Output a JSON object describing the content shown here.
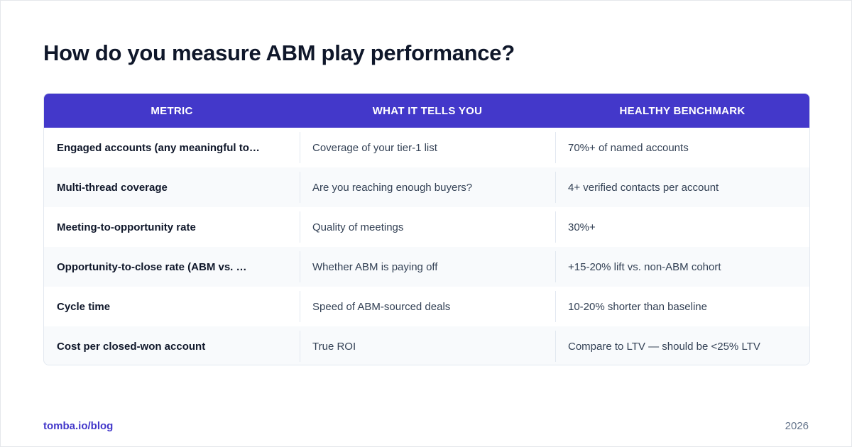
{
  "title": "How do you measure ABM play performance?",
  "table": {
    "headers": [
      "METRIC",
      "WHAT IT TELLS YOU",
      "HEALTHY BENCHMARK"
    ],
    "rows": [
      [
        "Engaged accounts (any meaningful to…",
        "Coverage of your tier-1 list",
        "70%+ of named accounts"
      ],
      [
        "Multi-thread coverage",
        "Are you reaching enough buyers?",
        "4+ verified contacts per account"
      ],
      [
        "Meeting-to-opportunity rate",
        "Quality of meetings",
        "30%+"
      ],
      [
        "Opportunity-to-close rate (ABM vs. …",
        "Whether ABM is paying off",
        "+15-20% lift vs. non-ABM cohort"
      ],
      [
        "Cycle time",
        "Speed of ABM-sourced deals",
        "10-20% shorter than baseline"
      ],
      [
        "Cost per closed-won account",
        "True ROI",
        "Compare to LTV — should be <25% LTV"
      ]
    ]
  },
  "footer": {
    "link": "tomba.io/blog",
    "year": "2026"
  },
  "colors": {
    "header_bg": "#4338ca",
    "title": "#0f172a",
    "accent": "#4338ca",
    "row_alt": "#f8fafc"
  }
}
